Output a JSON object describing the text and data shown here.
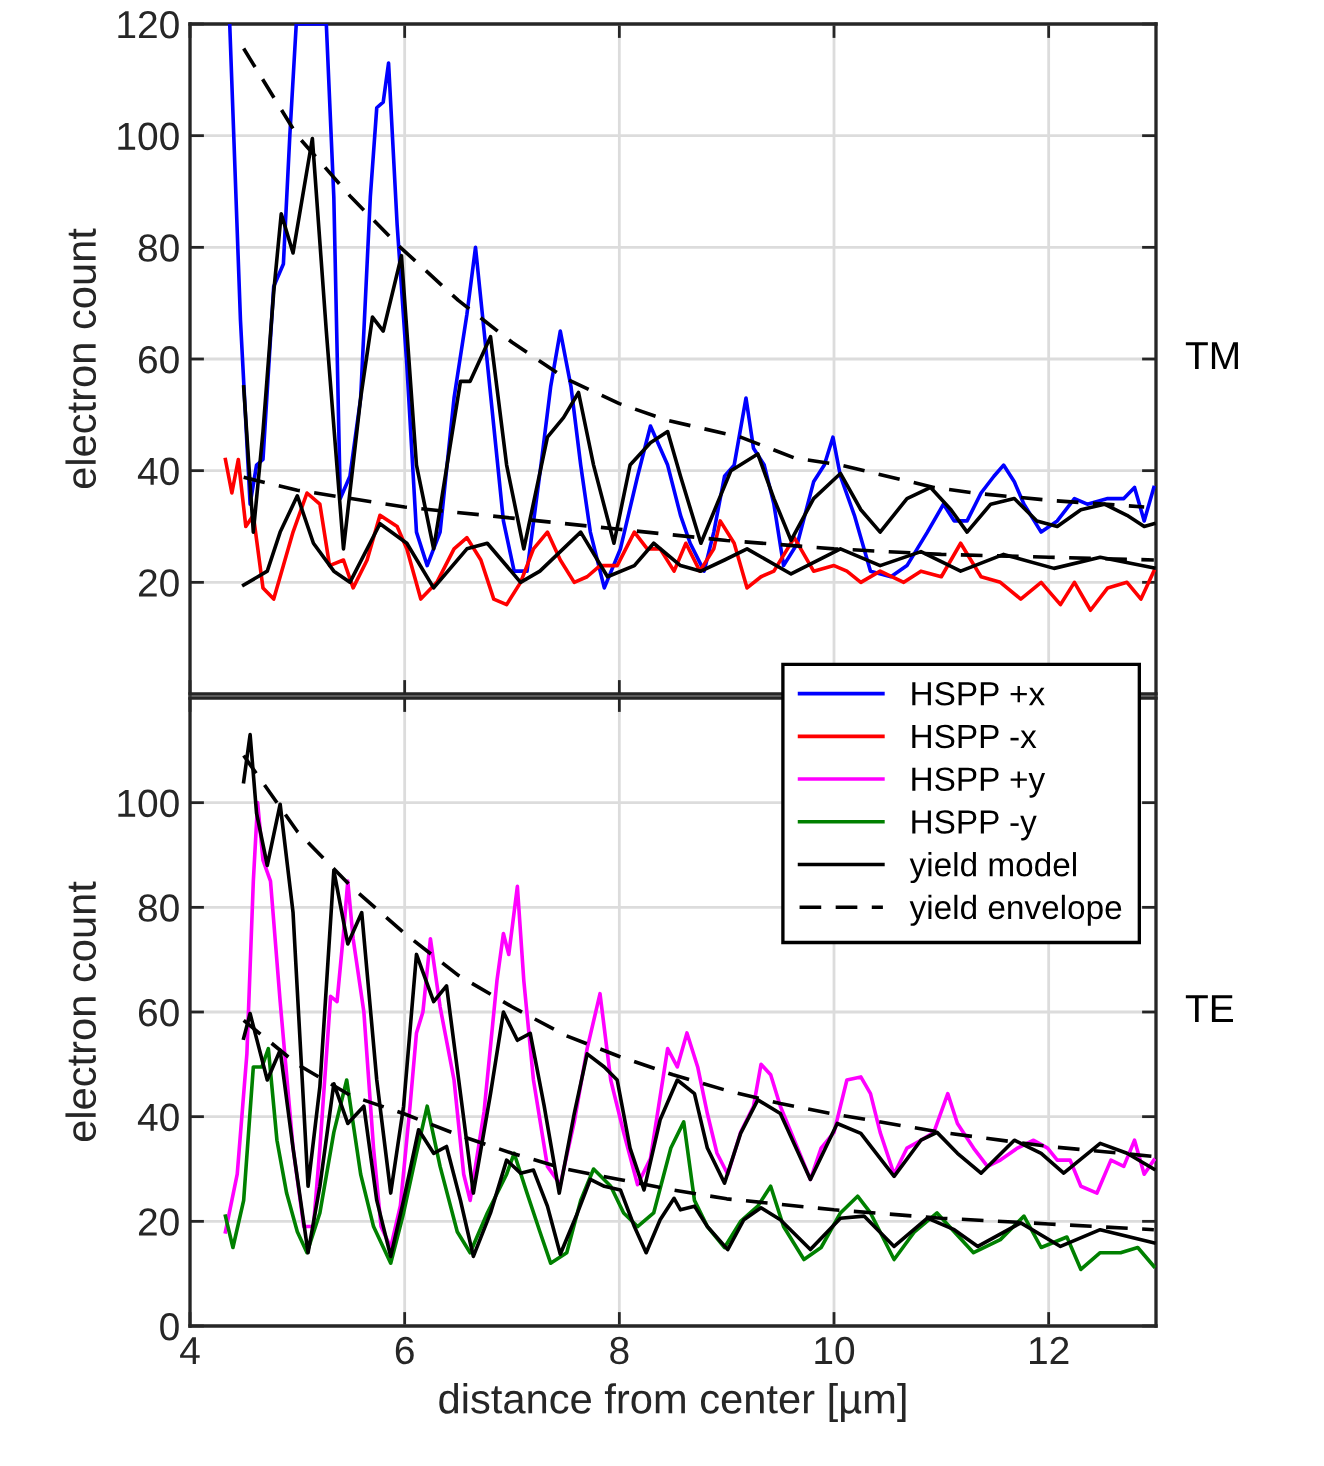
{
  "chart_data": [
    {
      "type": "line",
      "ylabel": "electron count",
      "annotations": [
        "TM"
      ],
      "xlim": [
        4,
        13
      ],
      "xticks": [
        4,
        6,
        8,
        10,
        12
      ],
      "ylim": [
        0,
        120
      ],
      "yticks": [
        20,
        40,
        60,
        80,
        100,
        120
      ],
      "grid": true,
      "tick_labels": "y",
      "legend": "bottom right",
      "line_style": "solid",
      "series": [
        {
          "name": "HSPP +x",
          "color": "#0000ff",
          "x": [
            4.37,
            4.47,
            4.56,
            4.62,
            4.68,
            4.78,
            4.87,
            4.93,
            4.99,
            5.27,
            5.34,
            5.4,
            5.49,
            5.59,
            5.68,
            5.74,
            5.8,
            5.85,
            5.93,
            6.02,
            6.11,
            6.21,
            6.33,
            6.46,
            6.58,
            6.66,
            6.74,
            6.83,
            6.92,
            7.02,
            7.14,
            7.27,
            7.36,
            7.45,
            7.55,
            7.64,
            7.73,
            7.86,
            8.01,
            8.17,
            8.29,
            8.45,
            8.57,
            8.66,
            8.79,
            8.88,
            8.98,
            9.07,
            9.18,
            9.25,
            9.35,
            9.44,
            9.53,
            9.66,
            9.81,
            9.91,
            9.99,
            10.06,
            10.19,
            10.34,
            10.53,
            10.68,
            10.87,
            11.02,
            11.12,
            11.24,
            11.37,
            11.49,
            11.58,
            11.68,
            11.77,
            11.93,
            12.08,
            12.24,
            12.36,
            12.55,
            12.7,
            12.8,
            12.89,
            12.98
          ],
          "values": [
            120,
            67,
            34,
            41,
            42,
            73,
            77,
            100,
            120,
            120,
            89,
            35,
            39,
            53,
            89,
            105,
            106,
            113,
            84,
            59,
            29,
            23,
            29,
            53,
            68,
            80,
            65,
            48,
            31,
            22,
            22,
            41,
            55,
            65,
            55,
            41,
            29,
            19,
            26,
            39,
            48,
            41,
            32,
            27,
            22,
            29,
            39,
            41,
            53,
            44,
            41,
            34,
            23,
            27,
            38,
            41,
            46,
            39,
            32,
            22,
            21,
            23,
            29,
            34,
            31,
            31,
            36,
            39,
            41,
            38,
            34,
            29,
            31,
            35,
            34,
            35,
            35,
            37,
            31,
            37
          ]
        },
        {
          "name": "HSPP -x",
          "color": "#ff0000",
          "x": [
            4.33,
            4.39,
            4.45,
            4.52,
            4.59,
            4.68,
            4.78,
            4.87,
            4.96,
            5.09,
            5.21,
            5.3,
            5.43,
            5.52,
            5.65,
            5.77,
            5.93,
            6.02,
            6.15,
            6.3,
            6.46,
            6.58,
            6.71,
            6.83,
            6.95,
            7.08,
            7.2,
            7.33,
            7.45,
            7.58,
            7.7,
            7.82,
            7.98,
            8.14,
            8.26,
            8.38,
            8.51,
            8.62,
            8.75,
            8.88,
            8.94,
            9.07,
            9.19,
            9.32,
            9.44,
            9.63,
            9.81,
            10.0,
            10.12,
            10.25,
            10.43,
            10.65,
            10.81,
            11.0,
            11.18,
            11.37,
            11.55,
            11.74,
            11.93,
            12.11,
            12.24,
            12.39,
            12.55,
            12.73,
            12.86,
            12.98
          ],
          "values": [
            42,
            36,
            42,
            30,
            32,
            19,
            17,
            23,
            29,
            36,
            34,
            23,
            24,
            19,
            24,
            32,
            30,
            26,
            17,
            20,
            26,
            28,
            24,
            17,
            16,
            20,
            26,
            29,
            24,
            20,
            21,
            23,
            23,
            29,
            26,
            26,
            22,
            27,
            22,
            26,
            31,
            27,
            19,
            21,
            22,
            28,
            22,
            23,
            22,
            20,
            22,
            20,
            22,
            21,
            27,
            21,
            20,
            17,
            20,
            16,
            20,
            15,
            19,
            20,
            17,
            22
          ]
        },
        {
          "name": "yield model",
          "color": "#000000",
          "x": [
            4.5,
            4.59,
            4.68,
            4.78,
            4.85,
            4.96,
            5.14,
            5.27,
            5.43,
            5.59,
            5.7,
            5.8,
            5.97,
            6.11,
            6.27,
            6.52,
            6.61,
            6.8,
            6.95,
            7.11,
            7.33,
            7.48,
            7.62,
            7.76,
            7.95,
            8.1,
            8.29,
            8.45,
            8.57,
            8.76,
            8.91,
            9.04,
            9.29,
            9.44,
            9.6,
            9.81,
            10.06,
            10.25,
            10.43,
            10.68,
            10.9,
            11.09,
            11.24,
            11.46,
            11.68,
            11.89,
            12.08,
            12.3,
            12.52,
            12.73,
            12.89,
            12.98
          ],
          "values": [
            55,
            29,
            47,
            72,
            86,
            79,
            99.5,
            65,
            26,
            53,
            67.5,
            65,
            78.5,
            41,
            26,
            56,
            56,
            64,
            41,
            26,
            46,
            49.5,
            54,
            41,
            27,
            41,
            45,
            47,
            39,
            27,
            34,
            40,
            43,
            35,
            27.5,
            35,
            39.5,
            33,
            29,
            35,
            37,
            33,
            29,
            34,
            35,
            31,
            30,
            33,
            34,
            32,
            30,
            30.5
          ]
        },
        {
          "color": "#000000",
          "x": [
            4.5,
            4.72,
            4.84,
            5.0,
            5.15,
            5.34,
            5.49,
            5.77,
            6.02,
            6.27,
            6.58,
            6.77,
            7.08,
            7.26,
            7.64,
            7.89,
            8.14,
            8.32,
            8.57,
            8.76,
            8.98,
            9.19,
            9.6,
            10.06,
            10.43,
            10.81,
            11.18,
            11.58,
            12.05,
            12.48,
            12.98
          ],
          "values": [
            19.5,
            22,
            29,
            35.5,
            27,
            22,
            20,
            30.5,
            27,
            19,
            26,
            27,
            20,
            22,
            29,
            21,
            23,
            27,
            23,
            22,
            24,
            26,
            21.5,
            26,
            23,
            25.5,
            22,
            25,
            22.5,
            24.5,
            22.6
          ]
        },
        {
          "name": "yield envelope",
          "color": "#000000",
          "line_style": "dashed",
          "x": [
            4.5,
            5.0,
            5.5,
            5.96,
            6.5,
            7.0,
            7.5,
            8.0,
            8.45,
            9.13,
            9.63,
            10.06,
            10.93,
            11.3,
            12.0,
            12.89
          ],
          "values": [
            115.6,
            100,
            89,
            80,
            70.5,
            63,
            56.5,
            52,
            49,
            46,
            42.3,
            41,
            37,
            36,
            34.7,
            33.5
          ]
        },
        {
          "color": "#000000",
          "line_style": "dashed",
          "x": [
            4.5,
            5.0,
            5.5,
            6.0,
            7.0,
            8.0,
            9.0,
            10.0,
            11.0,
            12.0,
            12.98
          ],
          "values": [
            38.8,
            36.5,
            35,
            33.5,
            31.5,
            29.5,
            27.5,
            26,
            25,
            24.5,
            24
          ]
        }
      ]
    },
    {
      "type": "line",
      "xlabel": "distance from center [µm]",
      "ylabel": "electron count",
      "annotations": [
        "TE"
      ],
      "xlim": [
        4,
        13
      ],
      "xticks": [
        4,
        6,
        8,
        10,
        12
      ],
      "ylim": [
        0,
        120
      ],
      "yticks": [
        0,
        20,
        40,
        60,
        80,
        100
      ],
      "grid": true,
      "legend": "top right",
      "line_style": "solid",
      "series": [
        {
          "name": "HSPP +y",
          "color": "#ff00ff",
          "x": [
            4.33,
            4.44,
            4.53,
            4.59,
            4.63,
            4.68,
            4.75,
            4.84,
            4.96,
            5.06,
            5.15,
            5.21,
            5.31,
            5.37,
            5.43,
            5.47,
            5.52,
            5.62,
            5.71,
            5.78,
            5.87,
            5.96,
            6.05,
            6.11,
            6.17,
            6.24,
            6.33,
            6.46,
            6.55,
            6.61,
            6.74,
            6.86,
            6.92,
            6.97,
            7.05,
            7.11,
            7.2,
            7.33,
            7.45,
            7.58,
            7.7,
            7.82,
            7.92,
            8.04,
            8.17,
            8.29,
            8.45,
            8.54,
            8.63,
            8.73,
            8.82,
            8.91,
            9.01,
            9.13,
            9.25,
            9.32,
            9.41,
            9.5,
            9.63,
            9.78,
            9.88,
            10.0,
            10.12,
            10.25,
            10.34,
            10.43,
            10.56,
            10.68,
            10.81,
            10.93,
            11.06,
            11.15,
            11.3,
            11.43,
            11.55,
            11.71,
            11.86,
            11.99,
            12.08,
            12.2,
            12.3,
            12.45,
            12.58,
            12.7,
            12.8,
            12.89,
            12.98
          ],
          "values": [
            18,
            29,
            52,
            85,
            100,
            89,
            85,
            62,
            34,
            19,
            19,
            34,
            63,
            62,
            75,
            85,
            74,
            60,
            34,
            19,
            15,
            23,
            42,
            56,
            60,
            74,
            61,
            47,
            29,
            24,
            41,
            66,
            75,
            71,
            84,
            66,
            47,
            30.5,
            27,
            39,
            53,
            63.5,
            47,
            37,
            27,
            32,
            53,
            49.5,
            56,
            49.5,
            40.6,
            33,
            29,
            37,
            42,
            50,
            48,
            42,
            35.5,
            28,
            34,
            37,
            47,
            47.6,
            44.4,
            37,
            29,
            34,
            35.5,
            37,
            44.4,
            38.7,
            34,
            30.5,
            31.7,
            34,
            35.5,
            34,
            31.7,
            31.7,
            26.7,
            25.4,
            31.7,
            30.5,
            35.5,
            29,
            31.7
          ]
        },
        {
          "name": "HSPP -y",
          "color": "#008000",
          "x": [
            4.33,
            4.4,
            4.5,
            4.59,
            4.67,
            4.73,
            4.81,
            4.9,
            5.0,
            5.09,
            5.21,
            5.34,
            5.46,
            5.59,
            5.71,
            5.87,
            5.99,
            6.11,
            6.21,
            6.33,
            6.49,
            6.61,
            6.77,
            6.95,
            7.02,
            7.14,
            7.26,
            7.36,
            7.51,
            7.64,
            7.76,
            7.92,
            8.04,
            8.17,
            8.32,
            8.48,
            8.6,
            8.7,
            8.82,
            8.98,
            9.13,
            9.29,
            9.41,
            9.53,
            9.72,
            9.88,
            10.06,
            10.22,
            10.34,
            10.56,
            10.75,
            10.96,
            11.12,
            11.3,
            11.55,
            11.77,
            11.93,
            12.17,
            12.3,
            12.48,
            12.67,
            12.83,
            12.98
          ],
          "values": [
            21,
            15,
            24,
            49.5,
            49.5,
            53,
            35.5,
            25.4,
            18,
            14,
            21.6,
            37,
            47,
            29,
            19,
            12,
            21.6,
            33,
            42,
            30.5,
            18,
            14,
            21.6,
            29,
            33,
            25.4,
            18,
            12,
            14,
            24,
            30,
            26.7,
            21.6,
            19,
            21.6,
            34,
            39,
            24,
            19,
            15,
            20,
            22.9,
            26.7,
            19,
            12.7,
            15,
            21.6,
            24.8,
            21.6,
            12.7,
            18,
            21.6,
            18,
            14,
            16.5,
            21,
            15,
            17,
            10.8,
            14,
            14,
            15,
            11.4
          ]
        },
        {
          "name": "yield model",
          "color": "#000000",
          "x": [
            4.5,
            4.56,
            4.62,
            4.72,
            4.84,
            4.96,
            5.1,
            5.21,
            5.34,
            5.47,
            5.6,
            5.74,
            5.87,
            5.99,
            6.11,
            6.27,
            6.39,
            6.52,
            6.64,
            6.8,
            6.92,
            7.05,
            7.17,
            7.3,
            7.44,
            7.58,
            7.7,
            7.86,
            7.98,
            8.1,
            8.23,
            8.38,
            8.54,
            8.7,
            8.82,
            8.98,
            9.13,
            9.29,
            9.5,
            9.78,
            10.03,
            10.25,
            10.56,
            10.81,
            10.96,
            11.15,
            11.37,
            11.68,
            11.93,
            12.14,
            12.48,
            12.73,
            12.98
          ],
          "values": [
            104,
            113,
            98,
            88,
            99.7,
            79,
            26.7,
            45.7,
            87,
            73,
            79,
            47,
            25.4,
            42,
            71,
            62,
            65,
            44.4,
            25.4,
            44.4,
            60,
            54.6,
            55.9,
            42,
            25.4,
            40.6,
            52,
            49.5,
            47,
            34,
            26,
            39.4,
            47,
            44.4,
            34,
            27.3,
            36.8,
            43.2,
            40.6,
            28,
            38.7,
            36.8,
            28.6,
            35.5,
            37,
            33,
            29.2,
            35.5,
            33,
            29.2,
            34.9,
            33,
            30
          ]
        },
        {
          "color": "#000000",
          "x": [
            4.5,
            4.56,
            4.72,
            4.84,
            4.96,
            5.1,
            5.21,
            5.34,
            5.47,
            5.62,
            5.74,
            5.87,
            5.99,
            6.13,
            6.27,
            6.39,
            6.52,
            6.64,
            6.8,
            6.95,
            7.08,
            7.2,
            7.33,
            7.45,
            7.61,
            7.73,
            7.86,
            8.01,
            8.14,
            8.25,
            8.38,
            8.51,
            8.57,
            8.7,
            8.82,
            9.01,
            9.16,
            9.32,
            9.5,
            9.78,
            10.06,
            10.28,
            10.56,
            10.87,
            11.12,
            11.34,
            11.74,
            12.11,
            12.48,
            12.98
          ],
          "values": [
            55,
            59.7,
            47,
            52.7,
            34,
            14,
            26.7,
            46.3,
            38.7,
            42,
            24,
            13.3,
            24,
            37.5,
            33,
            34.3,
            24,
            13.3,
            21.6,
            31.7,
            29.2,
            29.8,
            22.9,
            13.7,
            21.6,
            28,
            26.7,
            26,
            19,
            14,
            20.3,
            24.4,
            22.2,
            22.9,
            19,
            14.6,
            20.3,
            22.6,
            20.3,
            14.6,
            20.6,
            21,
            15.2,
            20.6,
            18.4,
            15.2,
            19.7,
            15.2,
            18.4,
            15.9
          ]
        },
        {
          "name": "yield envelope",
          "color": "#000000",
          "line_style": "dashed",
          "x": [
            4.5,
            5.0,
            5.5,
            6.0,
            6.5,
            7.0,
            7.5,
            8.0,
            8.5,
            9.0,
            9.5,
            10.0,
            11.0,
            12.0,
            12.98
          ],
          "values": [
            109,
            94.5,
            84,
            75,
            67,
            61,
            55.5,
            51.5,
            48,
            45,
            42.5,
            40.5,
            37,
            34.3,
            32.4
          ]
        },
        {
          "color": "#000000",
          "line_style": "dashed",
          "x": [
            4.5,
            5.0,
            5.5,
            6.0,
            6.5,
            7.0,
            7.5,
            8.0,
            8.5,
            9.0,
            10.0,
            11.0,
            12.0,
            12.98
          ],
          "values": [
            58.4,
            50,
            44,
            40.5,
            36.5,
            33,
            30,
            28,
            26,
            24.3,
            22.2,
            20.6,
            19.5,
            18.4
          ]
        }
      ]
    }
  ]
}
